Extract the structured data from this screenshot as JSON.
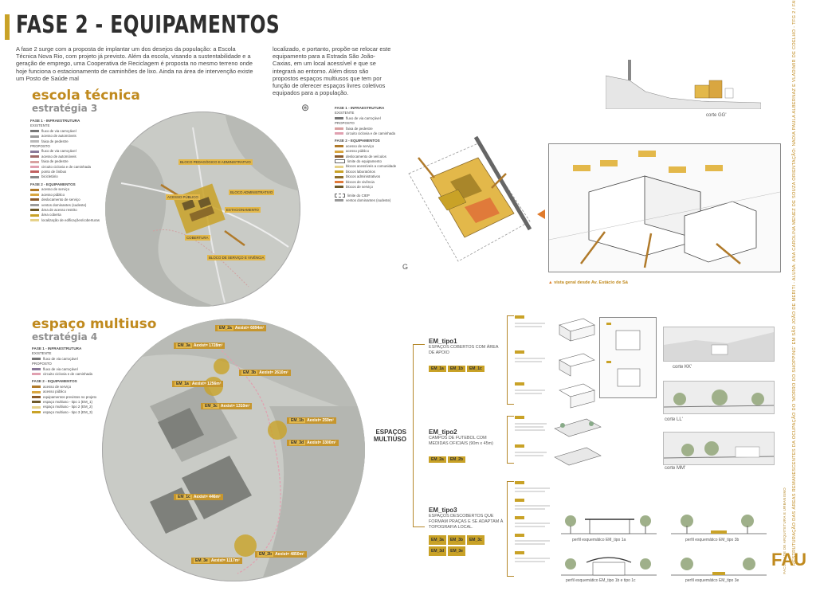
{
  "header": {
    "title": "FASE 2 - EQUIPAMENTOS",
    "intro_left": "A fase 2 surge com a proposta de implantar um dos desejos da população: a Escola Técnica Nova Rio, com projeto já previsto. Além da escola, visando a sustentabilidade e a geração de emprego, uma Cooperativa de Reciclagem é proposta no mesmo terreno onde hoje funciona o estacionamento de caminhões de lixo. Ainda na área de intervenção existe um Posto de Saúde mal",
    "intro_right": "localizado, e portanto, propõe-se relocar este equipamento para a Estrada São João-Caxias, em um local acessível e que se integrará ao entorno. Além disso são propostos espaços multiusos que tem por função de oferecer espaços livres coletivos equipados para a população."
  },
  "escola": {
    "title": "escola técnica",
    "subtitle": "estratégia 3",
    "legend": {
      "infra_title": "FASE 1 - INFRAESTRUTURA",
      "existente": "EXISTENTE",
      "items_existente": [
        "fluxo de via carroçável",
        "acesso de automóveis",
        "faixa de pedestre"
      ],
      "proposto": "PROPOSTO",
      "items_proposto": [
        "fluxo de via carroçável",
        "acesso de automóveis",
        "faixa de pedestre",
        "circuito ciclovia e de caminhada",
        "ponto de ônibus",
        "bicicletário"
      ],
      "equip_title": "FASE 2 - EQUIPAMENTOS",
      "items_equip": [
        "acesso de serviço",
        "acesso público",
        "deslocamento de serviço",
        "ventos dominantes (sudeste)",
        "área de acesso restrito",
        "área coberta",
        "localização de edificações/coberturas"
      ]
    },
    "map_labels": [
      "BLOCO PEDAGÓGICO E ADMINISTRATIVO",
      "ACESSO PÚBLICO",
      "BLOCO ADMINISTRATIVO",
      "COBERTURA",
      "BLOCO DE SERVIÇO E VIVÊNCIA",
      "ESTACIONAMENTO"
    ],
    "legend2": {
      "infra_title": "FASE 1 - INFRAESTRUTURA",
      "existente": "EXISTENTE",
      "item1": "fluxo de via carroçável",
      "proposto": "PROPOSTO",
      "items_proposto": [
        "faixa de pedestre",
        "circuito ciclovia e de caminhada"
      ],
      "equip_title": "FASE 2 - EQUIPAMENTOS",
      "items_equip": [
        "acesso de serviço",
        "acesso público",
        "deslocamento de veículos",
        "limite do equipamento",
        "blocos acessíveis a comunidade",
        "blocos laboratórios",
        "blocos administrativos",
        "blocos de vivência",
        "blocos de serviço"
      ],
      "extra": [
        "limite do CIEP",
        "ventos dominantes (sudeste)"
      ]
    },
    "corte_label": "corte GG'",
    "vista_label": "vista geral desde Av. Estácio de Sá"
  },
  "multiuso": {
    "title": "espaço multiuso",
    "subtitle": "estratégia 4",
    "legend": {
      "infra_title": "FASE 1 - INFRAESTRUTURA",
      "existente": "EXISTENTE",
      "items_existente": [
        "fluxo de via carroçável"
      ],
      "proposto": "PROPOSTO",
      "items_proposto": [
        "fluxo de via carroçável",
        "circuito ciclovia e de caminhada"
      ],
      "equip_title": "FASE 2 - EQUIPAMENTOS",
      "items_equip": [
        "acesso de serviço",
        "acesso público",
        "equipamentos previstos no projeto",
        "espaço multiuso - tipo 1 (EM_1)",
        "espaço multiuso - tipo 2 (EM_2)",
        "espaço multiuso - tipo 3 (EM_3)"
      ]
    },
    "areas": [
      {
        "id": "EM_2a",
        "area": "Aexist= 6894m²"
      },
      {
        "id": "EM_3a",
        "area": "Aexist= 1728m²"
      },
      {
        "id": "EM_1a",
        "area": "Aexist= 1256m²"
      },
      {
        "id": "EM_3b",
        "area": "Aexist= 2610m²"
      },
      {
        "id": "EM_3c",
        "area": "Aexist= 1310m²"
      },
      {
        "id": "EM_1b",
        "area": "Aexist= 259m²"
      },
      {
        "id": "EM_3d",
        "area": "Aexist= 3300m²"
      },
      {
        "id": "EM_1c",
        "area": "Aexist= 446m²"
      },
      {
        "id": "EM_3e",
        "area": "Aexist= 1117m²"
      },
      {
        "id": "EM_2b",
        "area": "Aexist= 4850m²"
      }
    ]
  },
  "tree": {
    "root": "ESPAÇOS MULTIUSO",
    "types": [
      {
        "name": "EM_tipo1",
        "desc": "ESPAÇOS COBERTOS COM ÁREA DE APOIO",
        "chips": [
          "EM_1a",
          "EM_1b",
          "EM_1c"
        ]
      },
      {
        "name": "EM_tipo2",
        "desc": "CAMPOS DE FUTEBOL COM MEDIDAS OFICIAIS (90m x 45m)",
        "chips": [
          "EM_2a",
          "EM_2b"
        ]
      },
      {
        "name": "EM_tipo3",
        "desc": "ESPAÇOS DESCOBERTOS QUE FORMAM PRAÇAS E SE ADAPTAM À TOPOGRAFIA LOCAL.",
        "chips": [
          "EM_3a",
          "EM_3b",
          "EM_3c",
          "EM_3d",
          "EM_3e"
        ]
      }
    ]
  },
  "cortes": [
    "corte KK'",
    "corte LL'",
    "corte MM'"
  ],
  "perfis": [
    "perfil esquemático EM_tipo 1a",
    "perfil esquemático EM_tipo 3b",
    "perfil esquemático EM_tipo 1b e tipo 1c",
    "perfil esquemático EM_tipo 3e"
  ],
  "sidebar": {
    "text": "RESTRUTURAÇÃO DAS ÁREAS REMANESCENTES DA OCUPAÇÃO DO 'MORRO DO SHOPPING' EM SÃO JOÃO DE MERITI - ALUNA: ANA CAROLINA MENEZ DE SOUZA ORIENTAÇÃO: NADIA PAULA ALBERNAZ E VLADIMIR DE COELHO - TFG 2 / FAU UFRJ / PLE_2020",
    "logo": "FAU",
    "faculty": "FACULDADE DE ARQUITETURA E URBANISMO"
  },
  "colors": {
    "accent": "#c08a1e",
    "gold": "#e3b84a",
    "map": "#c9cbc6"
  }
}
